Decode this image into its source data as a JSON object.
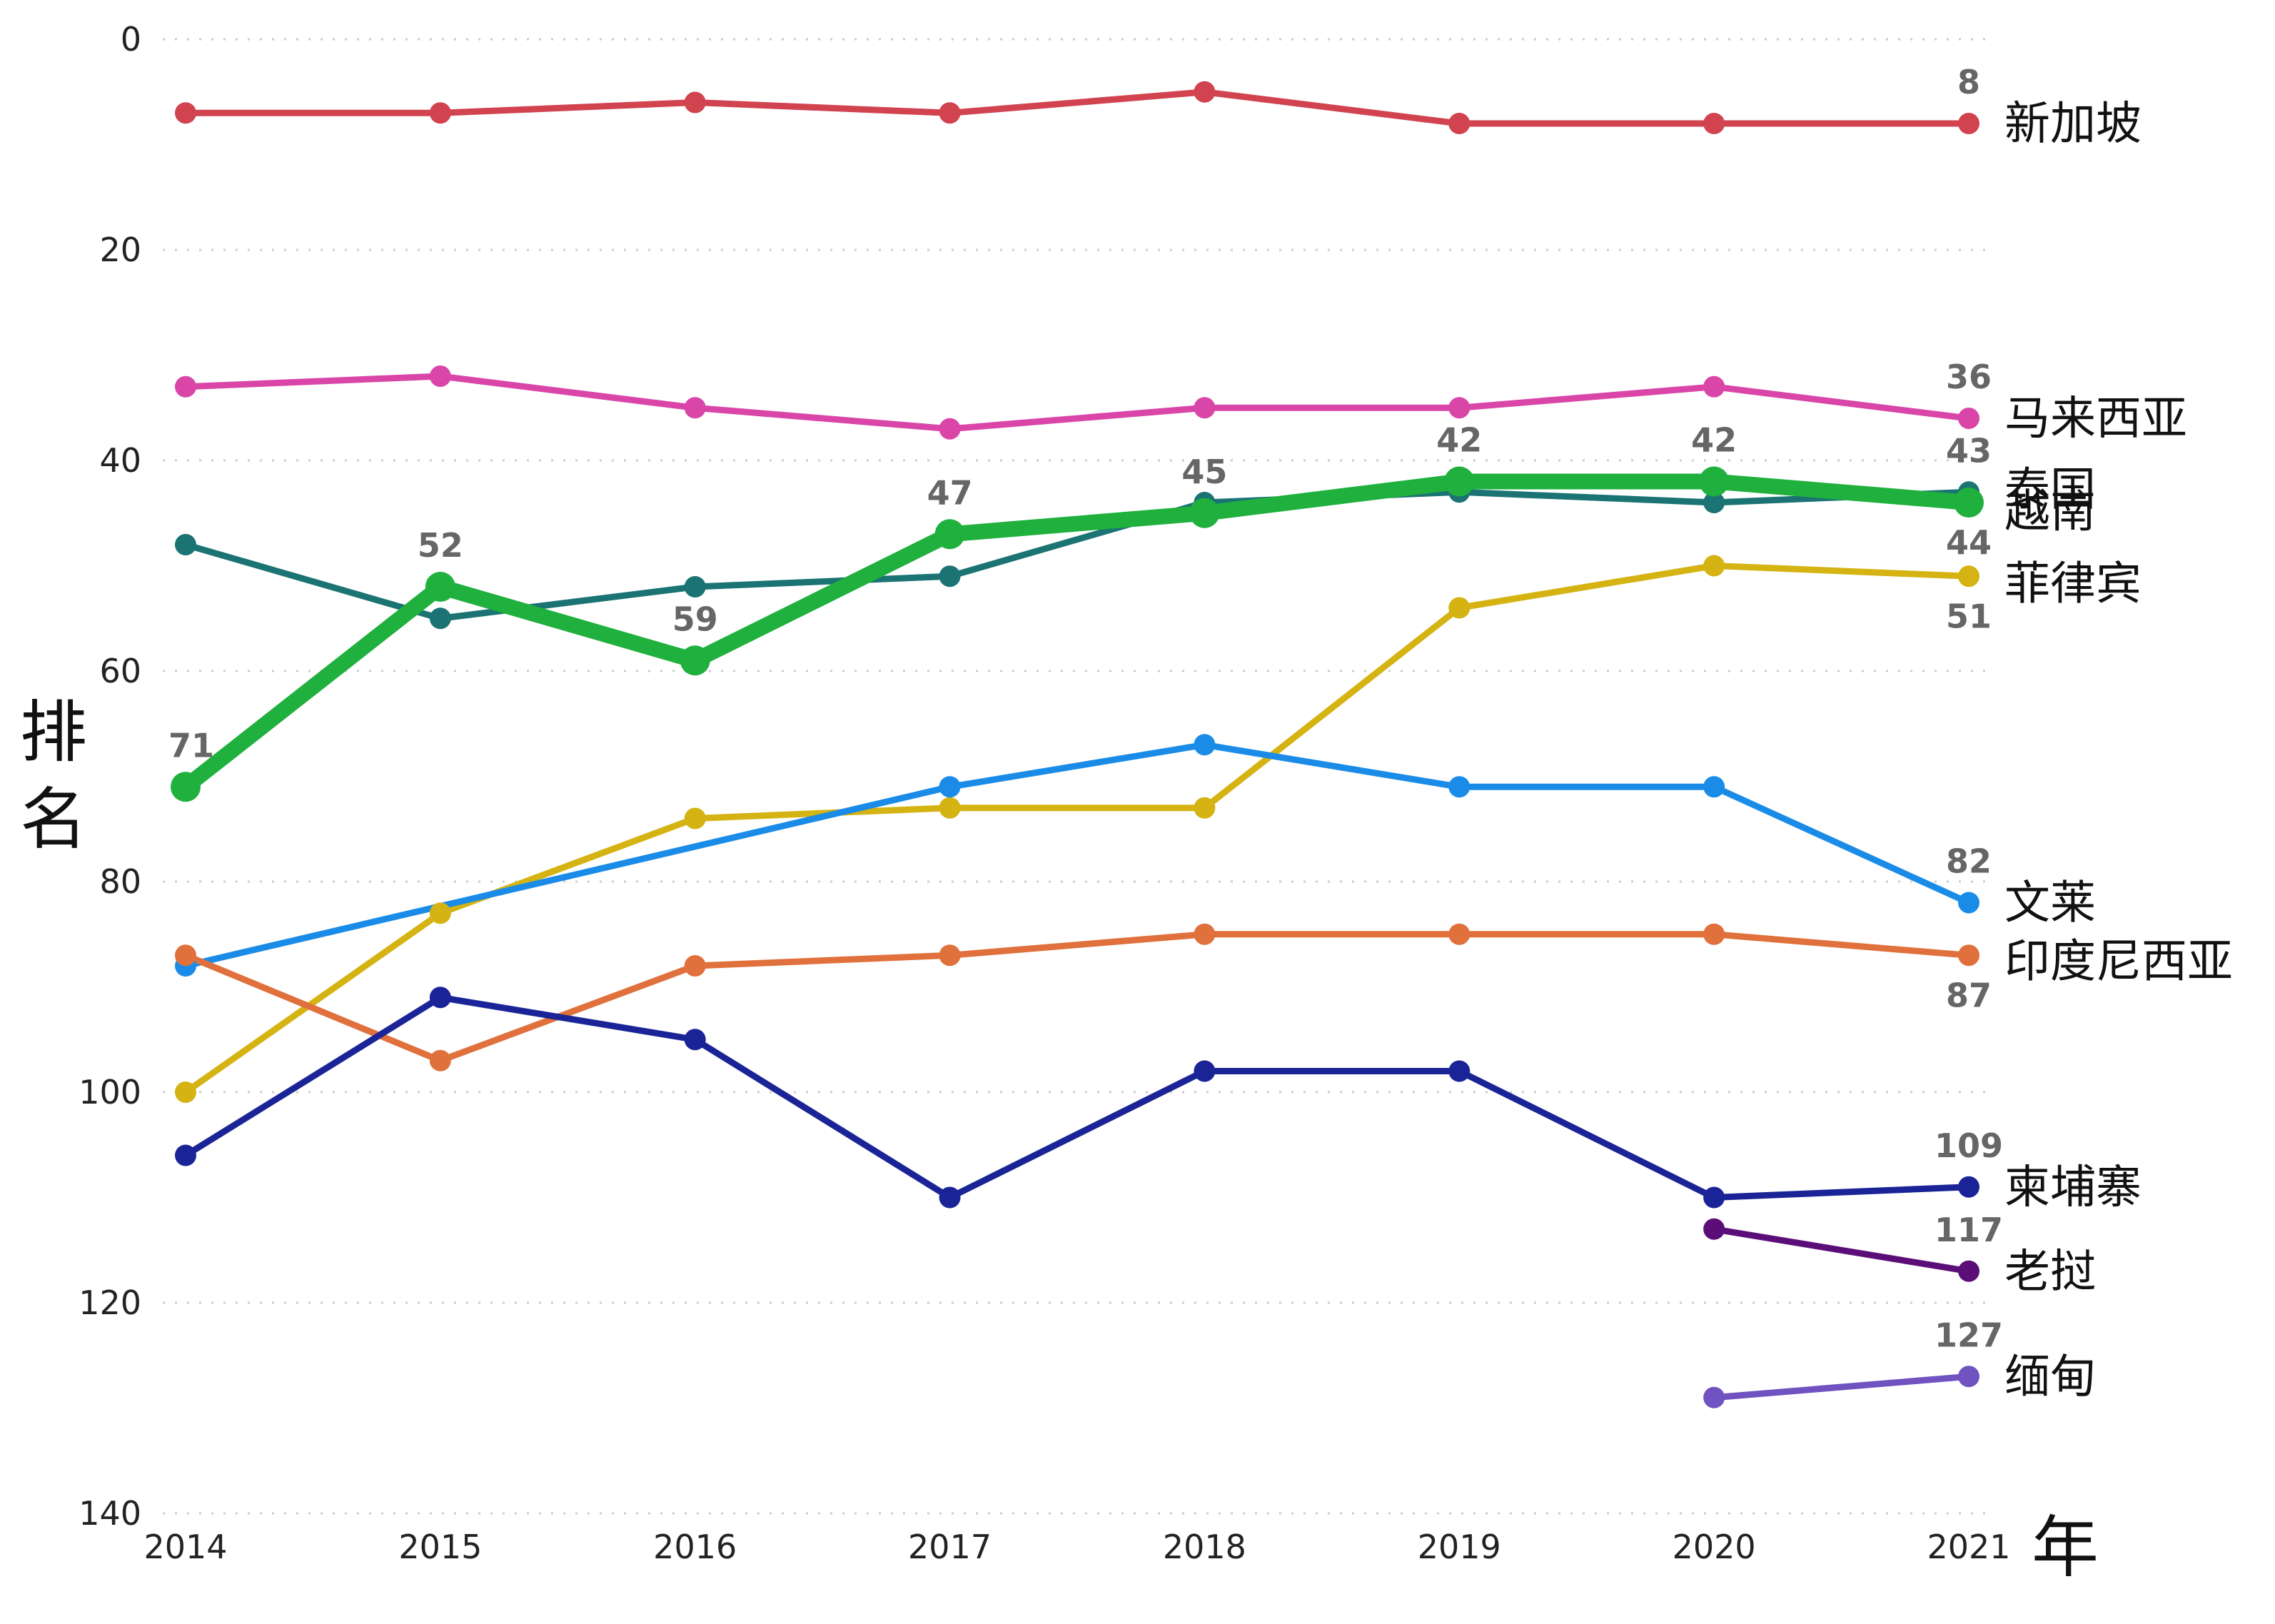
{
  "chart_data": {
    "type": "line",
    "title": "",
    "xlabel": "年",
    "ylabel": "排名",
    "ylabel_chars": [
      "排",
      "名"
    ],
    "y_inverted": true,
    "ylim": [
      0,
      140
    ],
    "yticks": [
      0,
      20,
      40,
      60,
      80,
      100,
      120,
      140
    ],
    "x": [
      2014,
      2015,
      2016,
      2017,
      2018,
      2019,
      2020,
      2021
    ],
    "grid": "horizontal dotted",
    "legend": "labels at line ends (right)",
    "highlight_series": "越南",
    "series": [
      {
        "name": "新加坡",
        "color": "#d1434f",
        "values": [
          7,
          7,
          6,
          7,
          5,
          8,
          8,
          8
        ]
      },
      {
        "name": "马来西亚",
        "color": "#d946a8",
        "values": [
          33,
          32,
          35,
          37,
          35,
          35,
          33,
          36
        ]
      },
      {
        "name": "泰国",
        "color": "#1b7373",
        "values": [
          48,
          55,
          52,
          51,
          44,
          43,
          44,
          43
        ]
      },
      {
        "name": "越南",
        "color": "#1fb03e",
        "values": [
          71,
          52,
          59,
          47,
          45,
          42,
          42,
          44
        ]
      },
      {
        "name": "菲律宾",
        "color": "#d4b312",
        "values": [
          100,
          83,
          74,
          73,
          73,
          54,
          50,
          51
        ]
      },
      {
        "name": "文莱",
        "color": "#1a8ce8",
        "values": [
          88,
          null,
          null,
          71,
          67,
          71,
          71,
          82
        ]
      },
      {
        "name": "印度尼西亚",
        "color": "#e0703c",
        "values": [
          87,
          97,
          88,
          87,
          85,
          85,
          85,
          87
        ]
      },
      {
        "name": "柬埔寨",
        "color": "#1a2496",
        "values": [
          106,
          91,
          95,
          110,
          98,
          98,
          110,
          109
        ]
      },
      {
        "name": "老挝",
        "color": "#5c0e78",
        "values": [
          null,
          null,
          null,
          null,
          null,
          null,
          113,
          117
        ]
      },
      {
        "name": "缅甸",
        "color": "#7052c0",
        "values": [
          null,
          null,
          null,
          null,
          null,
          null,
          129,
          127
        ]
      }
    ],
    "annotations": [
      {
        "series": "越南",
        "x": 2014,
        "text": "71"
      },
      {
        "series": "越南",
        "x": 2015,
        "text": "52"
      },
      {
        "series": "越南",
        "x": 2016,
        "text": "59"
      },
      {
        "series": "越南",
        "x": 2017,
        "text": "47"
      },
      {
        "series": "越南",
        "x": 2018,
        "text": "45"
      },
      {
        "series": "越南",
        "x": 2019,
        "text": "42"
      },
      {
        "series": "越南",
        "x": 2020,
        "text": "42"
      },
      {
        "series": "新加坡",
        "x": 2021,
        "text": "8"
      },
      {
        "series": "马来西亚",
        "x": 2021,
        "text": "36"
      },
      {
        "series": "泰国",
        "x": 2021,
        "text": "43"
      },
      {
        "series": "越南",
        "x": 2021,
        "text": "44"
      },
      {
        "series": "菲律宾",
        "x": 2021,
        "text": "51"
      },
      {
        "series": "文莱",
        "x": 2021,
        "text": "82"
      },
      {
        "series": "印度尼西亚",
        "x": 2021,
        "text": "87"
      },
      {
        "series": "柬埔寨",
        "x": 2021,
        "text": "109"
      },
      {
        "series": "老挝",
        "x": 2021,
        "text": "117"
      },
      {
        "series": "缅甸",
        "x": 2021,
        "text": "127"
      }
    ]
  }
}
